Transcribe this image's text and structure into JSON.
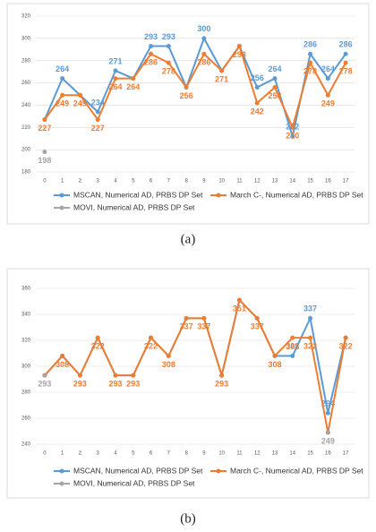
{
  "chart_data": [
    {
      "type": "line",
      "caption": "(a)",
      "categories": [
        "0",
        "1",
        "2",
        "3",
        "4",
        "5",
        "6",
        "7",
        "8",
        "9",
        "10",
        "11",
        "12",
        "13",
        "14",
        "15",
        "16",
        "17"
      ],
      "ylim": [
        180,
        320
      ],
      "yticks": [
        180,
        200,
        220,
        240,
        260,
        280,
        300,
        320
      ],
      "grid": true,
      "legend": "bottom",
      "series": [
        {
          "name": "MSCAN, Numerical AD, PRBS DP Set",
          "color": "#5b9bd5",
          "values": [
            227,
            264,
            249,
            234,
            271,
            264,
            293,
            293,
            256,
            300,
            271,
            293,
            256,
            264,
            212,
            286,
            264,
            286
          ]
        },
        {
          "name": "March C-, Numerical AD, PRBS DP Set",
          "color": "#ed7d31",
          "values": [
            227,
            249,
            249,
            227,
            264,
            264,
            286,
            278,
            256,
            286,
            271,
            293,
            242,
            256,
            220,
            278,
            249,
            278
          ]
        },
        {
          "name": "MOVI, Numerical AD, PRBS DP Set",
          "color": "#a5a5a5",
          "values": [
            198,
            null,
            null,
            null,
            null,
            null,
            null,
            null,
            null,
            null,
            null,
            null,
            null,
            null,
            null,
            null,
            null,
            null
          ]
        }
      ]
    },
    {
      "type": "line",
      "caption": "(b)",
      "categories": [
        "0",
        "1",
        "2",
        "3",
        "4",
        "5",
        "6",
        "7",
        "8",
        "9",
        "10",
        "11",
        "12",
        "13",
        "14",
        "15",
        "16",
        "17"
      ],
      "ylim": [
        240,
        360
      ],
      "yticks": [
        240,
        260,
        280,
        300,
        320,
        340,
        360
      ],
      "grid": true,
      "legend": "bottom",
      "series": [
        {
          "name": "MSCAN, Numerical AD, PRBS DP Set",
          "color": "#5b9bd5",
          "values": [
            293,
            308,
            293,
            322,
            293,
            293,
            322,
            308,
            337,
            337,
            293,
            351,
            337,
            308,
            308,
            337,
            264,
            322
          ]
        },
        {
          "name": "March C-, Numerical AD, PRBS DP Set",
          "color": "#ed7d31",
          "values": [
            293,
            308,
            293,
            322,
            293,
            293,
            322,
            308,
            337,
            337,
            293,
            351,
            337,
            308,
            322,
            322,
            249,
            322
          ]
        },
        {
          "name": "MOVI, Numerical AD, PRBS DP Set",
          "color": "#a5a5a5",
          "values": [
            293,
            null,
            null,
            null,
            null,
            null,
            null,
            null,
            null,
            null,
            null,
            null,
            null,
            null,
            null,
            null,
            249,
            null
          ]
        }
      ]
    }
  ]
}
